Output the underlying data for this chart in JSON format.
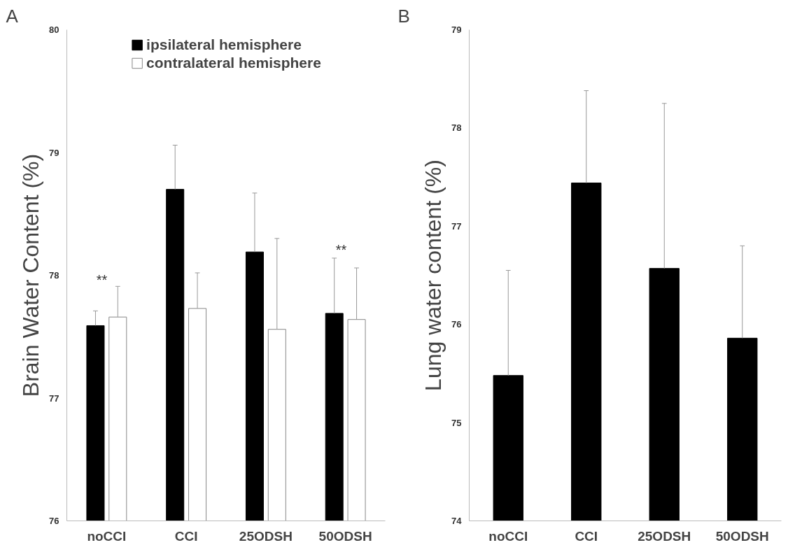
{
  "chart_data": [
    {
      "type": "bar",
      "ylabel": "Brain Water Content (%)",
      "categories": [
        "noCCI",
        "CCI",
        "25ODSH",
        "50ODSH"
      ],
      "ylim": [
        76,
        80
      ],
      "yticks": [
        76,
        77,
        78,
        79,
        80
      ],
      "grid": false,
      "legend": "top",
      "series": [
        {
          "name": "ipsilateral hemisphere",
          "color": "#000000",
          "values": [
            77.59,
            78.7,
            78.19,
            77.69
          ],
          "errors": [
            [
              77.59,
              77.71
            ],
            [
              78.7,
              79.06
            ],
            [
              78.19,
              78.67
            ],
            [
              77.69,
              78.14
            ]
          ]
        },
        {
          "name": "contralateral hemisphere",
          "color": "#ffffff",
          "values": [
            77.66,
            77.73,
            77.56,
            77.64
          ],
          "errors": [
            [
              77.66,
              77.91
            ],
            [
              77.73,
              78.02
            ],
            [
              77.56,
              78.3
            ],
            [
              77.64,
              78.06
            ]
          ]
        }
      ],
      "annotations": [
        "A",
        "**",
        "**"
      ]
    },
    {
      "type": "bar",
      "ylabel": "Lung water content (%)",
      "categories": [
        "noCCI",
        "CCI",
        "25ODSH",
        "50ODSH"
      ],
      "ylim": [
        74,
        79
      ],
      "yticks": [
        74,
        75,
        76,
        77,
        78,
        79
      ],
      "grid": false,
      "series": [
        {
          "color": "#000000",
          "values": [
            75.48,
            77.44,
            76.57,
            75.86
          ],
          "errors": [
            [
              75.48,
              76.55
            ],
            [
              77.44,
              78.38
            ],
            [
              76.57,
              78.25
            ],
            [
              75.86,
              76.8
            ]
          ]
        }
      ],
      "annotations": [
        "B"
      ]
    }
  ]
}
